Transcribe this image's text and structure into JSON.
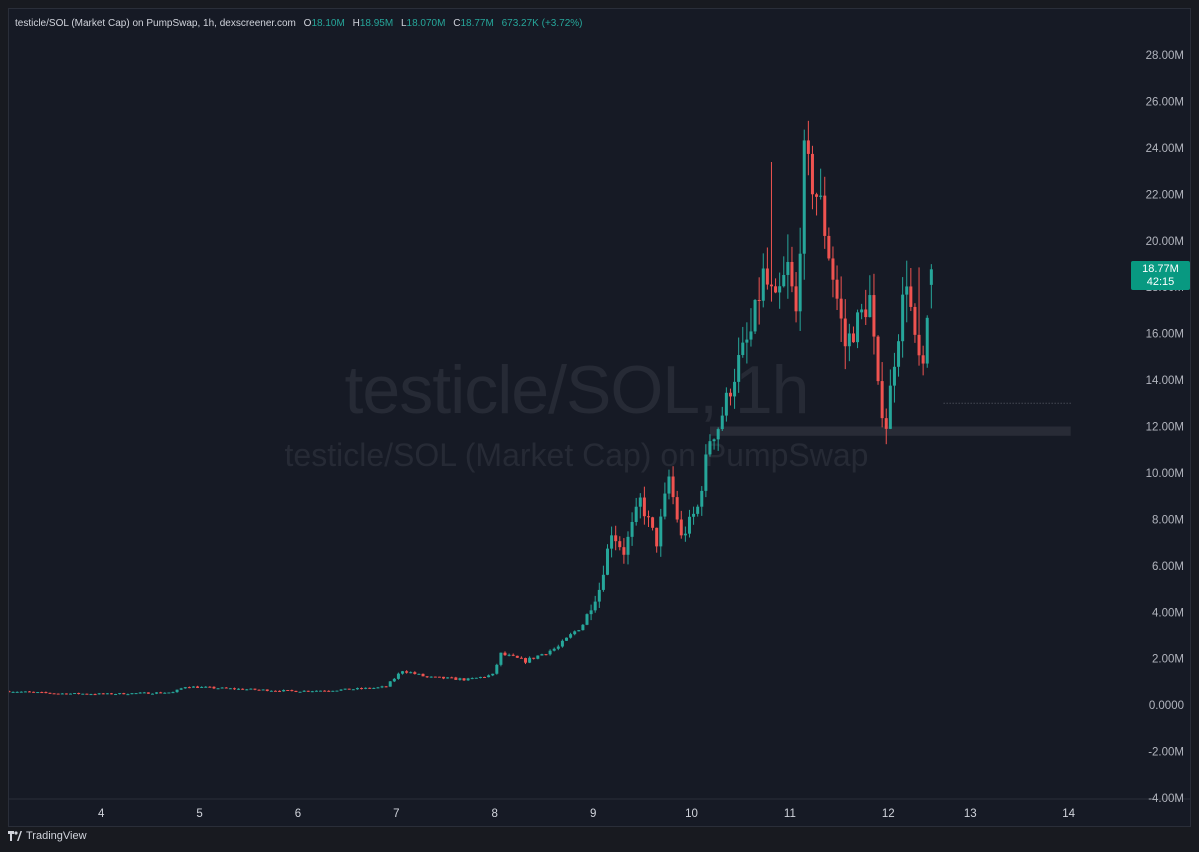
{
  "header": {
    "title": "testicle/SOL (Market Cap) on PumpSwap, 1h, dexscreener.com",
    "o_label": "O",
    "o_value": "18.10M",
    "h_label": "H",
    "h_value": "18.95M",
    "l_label": "L",
    "l_value": "18.070M",
    "c_label": "C",
    "c_value": "18.77M",
    "change": "673.27K (+3.72%)"
  },
  "watermark": {
    "line1": "testicle/SOL, 1h",
    "line2": "testicle/SOL (Market Cap) on PumpSwap"
  },
  "price_tag": {
    "price": "18.77M",
    "countdown": "42:15"
  },
  "footer": {
    "brand": "TradingView",
    "logo_icon": "tradingview-logo-icon"
  },
  "colors": {
    "up": "#26a69a",
    "down": "#ef5350",
    "tag": "#089981",
    "background": "#161a25"
  },
  "chart_data": {
    "type": "candlestick",
    "ylim": [
      -4.0,
      28.0
    ],
    "y_unit": "M",
    "y_ticks": [
      "28.00M",
      "26.00M",
      "24.00M",
      "22.00M",
      "20.00M",
      "18.00M",
      "16.00M",
      "14.00M",
      "12.00M",
      "10.00M",
      "8.00M",
      "6.00M",
      "4.00M",
      "2.00M",
      "0.0000",
      "-2.00M",
      "-4.00M"
    ],
    "x_ticks": [
      "4",
      "5",
      "6",
      "7",
      "8",
      "9",
      "10",
      "11",
      "12",
      "13",
      "14"
    ],
    "x_tick_hours": [
      22.5,
      46.5,
      70.5,
      94.5,
      118.5,
      142.5,
      166.5,
      190.5,
      214.5,
      234.5,
      258.5
    ],
    "x_range_hours": [
      0,
      272
    ],
    "last_price": 18.77,
    "support_zone": [
      11.6,
      12.0
    ],
    "dotted_level": 13.0,
    "keypoints": [
      {
        "h": 0,
        "v": 0.6
      },
      {
        "h": 12,
        "v": 0.5
      },
      {
        "h": 24,
        "v": 0.48
      },
      {
        "h": 40,
        "v": 0.55
      },
      {
        "h": 43,
        "v": 0.8
      },
      {
        "h": 55,
        "v": 0.7
      },
      {
        "h": 70,
        "v": 0.6
      },
      {
        "h": 80,
        "v": 0.65
      },
      {
        "h": 90,
        "v": 0.75
      },
      {
        "h": 92,
        "v": 0.8
      },
      {
        "h": 96,
        "v": 1.5
      },
      {
        "h": 102,
        "v": 1.2
      },
      {
        "h": 112,
        "v": 1.1
      },
      {
        "h": 118,
        "v": 1.3
      },
      {
        "h": 120,
        "v": 2.2
      },
      {
        "h": 126,
        "v": 1.9
      },
      {
        "h": 134,
        "v": 2.5
      },
      {
        "h": 140,
        "v": 3.5
      },
      {
        "h": 144,
        "v": 5.0
      },
      {
        "h": 147,
        "v": 7.5
      },
      {
        "h": 150,
        "v": 6.6
      },
      {
        "h": 154,
        "v": 8.8
      },
      {
        "h": 158,
        "v": 7.0
      },
      {
        "h": 161,
        "v": 9.8
      },
      {
        "h": 164,
        "v": 7.2
      },
      {
        "h": 168,
        "v": 8.5
      },
      {
        "h": 171,
        "v": 11.5
      },
      {
        "h": 173,
        "v": 12.0
      },
      {
        "h": 178,
        "v": 14.8
      },
      {
        "h": 181,
        "v": 16.0
      },
      {
        "h": 184,
        "v": 18.5
      },
      {
        "h": 187,
        "v": 17.2
      },
      {
        "h": 190,
        "v": 18.8
      },
      {
        "h": 192,
        "v": 16.8
      },
      {
        "h": 194,
        "v": 23.5
      },
      {
        "h": 198,
        "v": 21.5
      },
      {
        "h": 201,
        "v": 18.5
      },
      {
        "h": 204,
        "v": 15.5
      },
      {
        "h": 207,
        "v": 16.5
      },
      {
        "h": 210,
        "v": 17.5
      },
      {
        "h": 212,
        "v": 13.5
      },
      {
        "h": 214,
        "v": 12.1
      },
      {
        "h": 216,
        "v": 15.0
      },
      {
        "h": 219,
        "v": 18.5
      },
      {
        "h": 221,
        "v": 15.5
      },
      {
        "h": 223,
        "v": 14.2
      },
      {
        "h": 225,
        "v": 18.77
      }
    ]
  }
}
